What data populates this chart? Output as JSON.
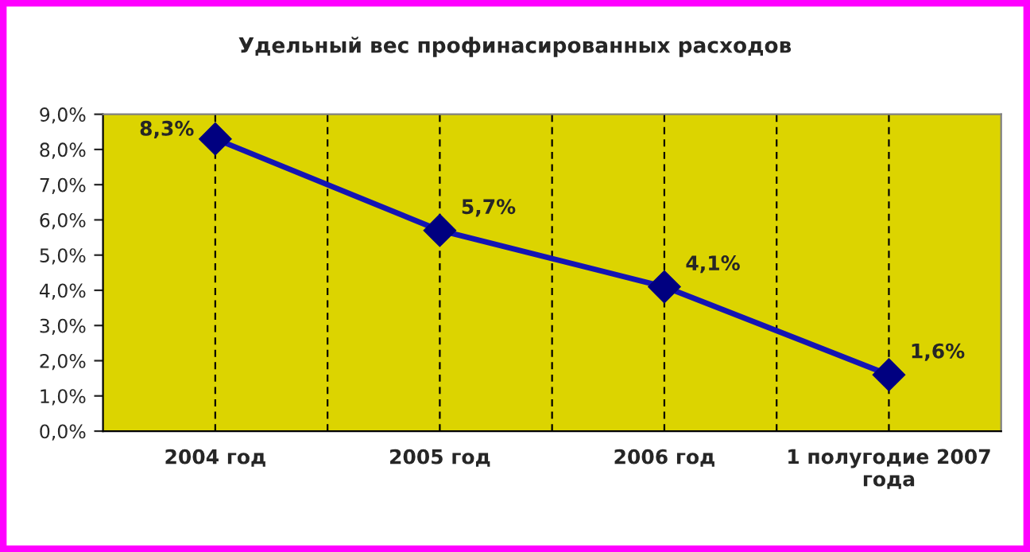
{
  "chart_data": {
    "type": "line",
    "title": "Удельный вес профинасированных расходов",
    "categories": [
      "2004 год",
      "2005 год",
      "2006 год",
      "1 полугодие 2007\nгода"
    ],
    "series": [
      {
        "color": "#1414b4",
        "values": [
          8.3,
          5.7,
          4.1,
          1.6
        ],
        "value_labels": [
          "8,3%",
          "5,7%",
          "4,1%",
          "1,6%"
        ]
      }
    ],
    "ylim": [
      0,
      9
    ],
    "yticks": [
      {
        "value": 0,
        "label": "0,0%"
      },
      {
        "value": 1,
        "label": "1,0%"
      },
      {
        "value": 2,
        "label": "2,0%"
      },
      {
        "value": 3,
        "label": "3,0%"
      },
      {
        "value": 4,
        "label": "4,0%"
      },
      {
        "value": 5,
        "label": "5,0%"
      },
      {
        "value": 6,
        "label": "6,0%"
      },
      {
        "value": 7,
        "label": "7,0%"
      },
      {
        "value": 8,
        "label": "8,0%"
      },
      {
        "value": 9,
        "label": "9,0%"
      }
    ],
    "grid": "x",
    "marker": "diamond",
    "line_style": "solid",
    "legend": false
  }
}
